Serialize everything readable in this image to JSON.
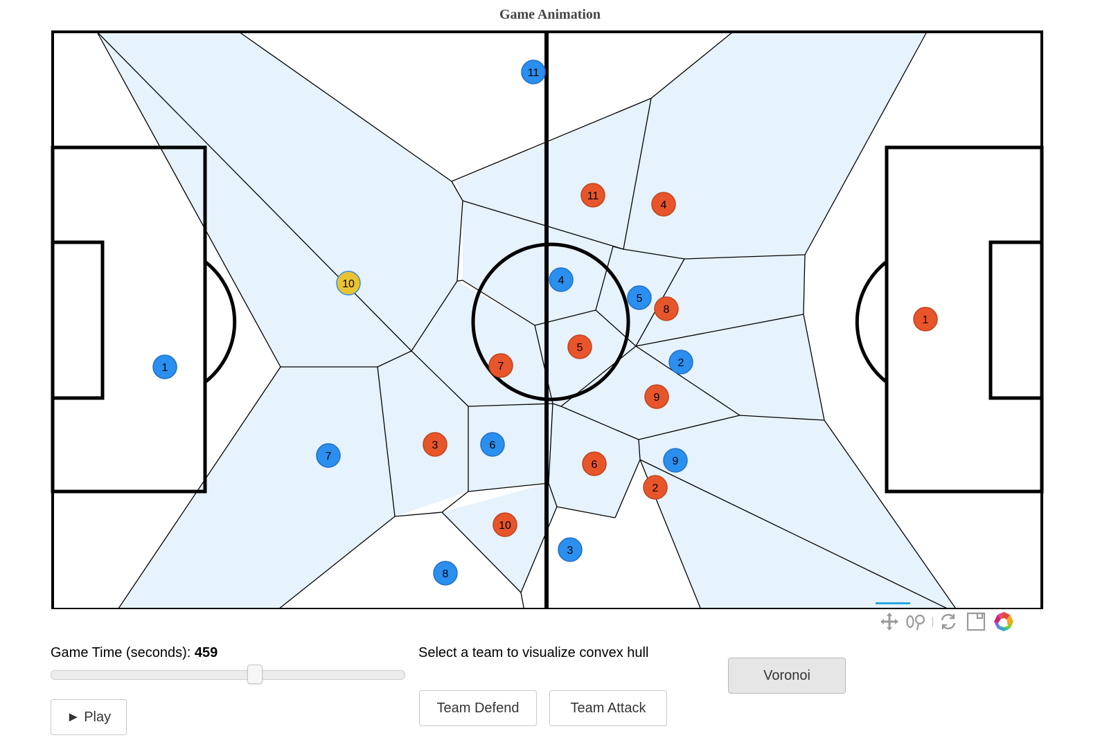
{
  "title": "Game Animation",
  "colors": {
    "team_defend": "#2b8ff0",
    "team_attack": "#e8552a",
    "ball": "#e9c332",
    "voronoi_fill": "#e6f2fc"
  },
  "players": {
    "team_defend": [
      "1",
      "2",
      "3",
      "4",
      "5",
      "6",
      "7",
      "8",
      "9",
      "10",
      "11"
    ],
    "team_attack": [
      "1",
      "2",
      "3",
      "4",
      "5",
      "6",
      "7",
      "8",
      "9",
      "10",
      "11"
    ]
  },
  "controls": {
    "time_label": "Game Time (seconds):",
    "time_value": "459",
    "time_fraction": 0.58,
    "play_label": "► Play",
    "hull_prompt": "Select a team to visualize convex hull",
    "team_defend_label": "Team Defend",
    "team_attack_label": "Team Attack",
    "voronoi_label": "Voronoi"
  },
  "toolbar": [
    "pan-icon",
    "wheel-zoom-icon",
    "reset-icon",
    "save-icon",
    "bokeh-logo-icon"
  ]
}
